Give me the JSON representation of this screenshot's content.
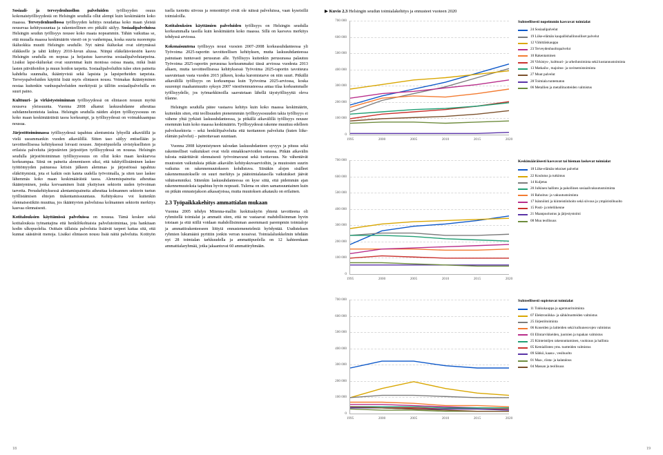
{
  "left_page": {
    "col1_p1_bold": "Sosiaali- ja terveydenhuollon palveluiden",
    "col1_p1_rest": " työllisyyden osuus kokonaistyöllisyydestä on Helsingin seudulla ollut alempi kuin keskimäärin koko maassa. ",
    "col1_p1_bold2": "Terveydenhuollossa",
    "col1_p1_rest2": " työllisyyden kehitys noudattaa koko maan yleistä nousevaa kehityssuuntaa ja rakenteellinen ero pitkälti säilyy. ",
    "col1_p1_bold3": "Sosiaalipalveluissa",
    "col1_p1_rest3": " Helsingin seudun työllisyys nousee koko maata nopeammin. Tähän vaikuttaa se, että muualla maassa keskimäärin väestö on jo vanhempaa, koska suuria nuorempia ikäluokkia muutti Helsingin seudulle. Nyt nämä ikäluokat ovat siirtymässä eläkkeelle ja tahti kiihtyy 2010-luvun alussa. Niinpä eläkeläisväestön kasvu Helsingin seudulla on nopeaa ja heijastuu kasvavina sosiaalipalvelutarpeina. Lisäksi lapsi-ikäluokat ovat suurenmat kuin monissa osissa maata, mikä lisää lasten päivähoidon ja muun hoidon tarpeita. Sosiaalipalveluihin tulee siten paineita kahdelta suunnalta, ikääntyvistä sekä lapsista ja lapsiperheiden tarpeista. Terveyspalveluiden käyttöä lisää myös elintason nousu. Voimakas ikääntyminen nostaa kuitenkin vanhuspalveluiden merkitystä ja tällöin sosiaalipalveluilla on suuri paino.",
    "col1_p2_bold": "Kulttuuri- ja virkistystoiminnan",
    "col1_p2_rest": " työllisyydessä on elintason nousun myötä nouseva yleissuunta. Vuonna 2008 alkanut laskusuhdanne aiheuttaa suhdanneluonteista laskua. Helsingin seudulla näiden alojen työllisyysosuus on koko maan keskimääräistä tasoa korkeampi, ja työllisyydessä on voimakkaampaa nousua.",
    "col1_p3_bold": "Järjestötoiminnassa",
    "col1_p3_rest": " työllisyydessä tapahtuu alentumista lyhyellä aikavälillä ja vielä useammankin vuoden aikavälillä. Sitten taso säilyy entisellään ja tavoitteellisessa kehityksessä loivasti nousee. Järjestöpuolella sivistyksellisten ja erilaisia palveluita järjestävien järjestöjen työllisyydessä on nousua. Helsingin seudulla järjestötoiminnan työllisyysosuus on ollut koko maan keskiarvoa korkeampaa. Siinä on paineita alenemiseen siksi, että tukityöllistäminen laskee työttömyyden painuessa kriisin jälkeen alemmas ja järjestöissä tapahtuu eläköitymistä, jota ei kaikin osin kateta uudella työvoimalla, ja siten taso laskee lähemmäs koko maan keskimääräistä tasoa. Alenemispaineita aiheuttaa ikääntyminen, jonka korvaaminen lisää yksityisen sektorin uuden työvoiman tarvetta. Peruskehityksessä alentamispaineita aiheuttaa kolmannen sektorin tuetun työllistämisen ehtojen tiukentamissuuntaus. Kehityskuva voi kuitenkin olennaisestikiin muuttua, jos ikääntyvien palveluissa kolmannen sektorin merkitys kasvaa olennaisesti.",
    "col1_p4_bold": "Kotitalouksien käyttämissä palveluissa",
    "col1_p4_rest": " on nousua. Tämä koskee sekä kotitalouksia työnantajina että henkilökohtaisia palvelutoimintaa, jota hankitaan kodin ulkopuolelta. Osittain tällaisia palveluita lisäävät tarpeet kattaa sitä, että kunnat säästävät menoja. Lisäksi elintason nousu lisää näitä palveluita. Kotityön tuella tuotettu siivous ja remonttityö eivät ole näissä palveluissa, vaan kyseisillä toimialoilla.",
    "col2_p1_bold": "Kotitalouksien käyttämien palveluiden",
    "col2_p1_rest": " työllisyys on Helsingin seudulla korkeammalla tasolla kuin keskimäärin koko maassa. Sillä on kasvava merkitys tehdyssä arviossa.",
    "col2_p2_bold": "Kokonaisuutena",
    "col2_p2_rest": " työllisyys nousi vuosien 2007–2008 korkeasuhdanteessa yli Työvoima 2025-raportin tavoitteellisen kehityksen, mutta laskusuhdanteessa painutaan tuntuvasti perusuran alle. Työllisyys kuitenkin perusurassa palautuu Työvoima 2025-raportin perusuraa korkeammaksi tässä arviossa vuodesta 2013 alkaen, mutta tavoitteellisessa kehityksessä Työvoima 2025-raportin tavoiteura saavutetaan vasta vuoden 2015 jälkeen, koska kuromistarve on niin suuri. Pitkällä aikavälillä työllisyys on korkeampaa kuin Työvoima 2025-arviossa, koska suurempi maahanmuutto syksyn 2007 väestöennusteessa antaa tilaa korkeammalle työllisyydelle, jos työmarkkinoilla saavutetaan lähellä täystyöllisyyttä oleva tilanne.",
    "col2_p3": "Helsingin seudulla pätee vastaava kehitys kuin koko maassa keskimäärin, kuitenkin siten, että teollisuuden pienenmmän työllisyysosuuden takia työllisyys ei vähene yhtä jyrkästi laskusuhdanteessa, ja pitkällä aikavälillä työllisyys nousee enemmän kuin koko maassa keskimäärin. Työllisyydessä rakenne muuttuu edelleen palvelusektoria – sekä henkilöpalveluita että tuottannon palveluita (kuten liike-elämän palvelut) – painottavaan suuntaan.",
    "col2_p4": "Vuonna 2008 käynnistyneen taloudan laskusuhdanteen syvyys ja pituus sekä rakenteelliset vaikutukset ovat vielä ennakkoarvioiden varassa. Pitkän aikavälin tulosta määrittävät olennaisesti työvoimavarat sekä tuottavuus. Ne vähentävät muutosten vaikutuksia pitkän aikavälin kehityskuvaarvioihin, ja muutosten suurin vaikutus on rakennemuutokseen kohdistuva. Siinäkin alojen sisälleet rakennemuutokselle on suuri merkitys ja päätoimialatasolla vaikutukset jäävät vähäisemmiksi. Sittenkin laskusuhdanteessa on kyse siitä, että pidemmän ajan rakennemuutoksia tapahtuu hyvin nopeasti. Tulema on siten samansuuntainen kuin on pitkän ennustejakson aikasarjoissa, mutta muutoksen aikataulu on erilainen.",
    "col2_h3": "2.3 Työpaikkakehitys ammattialan mukaan",
    "col2_p5": "Vuonna 2005 tehdyn Mitenna-mallin luokituskyön yhtenä tavoitteena oli ryhmitellä toimialat ja ammatit siten, että ne vastaavat mahdollisimman hyvin toisiaan ja että niillä voidaan mahdollisimman aseemmasti parempmin toimialoje ja ammattirakenteeseen liittyiä ennustemenetelmiä hyödyntää. Uudisteksen ryhmien lukumäärä pyrittiin jonkin verran nousivat. Toimialaluokkelmin tehdään nyt 28 toimialan tarkkuudella ja ammattipuolella on 12 kahteenkaan ammattialaryhmää, jotka jakaantuvat 60 ammattiryhmään."
  },
  "page_left_num": "18",
  "page_right_num": "19",
  "chart_caption_prefix": "Kuvio 2.3",
  "chart_caption_rest": " Helsingin seudun toimialakehitys ja ennusteet vuoteen 2020",
  "chart1": {
    "legend_title": "Suhteellisesti nopeimmin kasvavat toimialat",
    "ymax": 700000,
    "ystep": 100000,
    "xyears": [
      1995,
      2000,
      2005,
      2010,
      2015,
      2020
    ],
    "series": [
      {
        "name": "24 Sosiaalipalvelut",
        "color": "#0b57c9",
        "data": [
          26,
          34,
          40,
          46,
          54,
          62
        ]
      },
      {
        "name": "19 Liike-elämän kaupallishallinnolliset palvelut",
        "color": "#7b7b7b",
        "data": [
          20,
          30,
          36,
          42,
          50,
          58
        ]
      },
      {
        "name": "12 Vähittäiskauppa",
        "color": "#d9a600",
        "data": [
          40,
          44,
          48,
          50,
          53,
          56
        ]
      },
      {
        "name": "23 Terveydenhuoltopalvelut",
        "color": "#b82c8a",
        "data": [
          32,
          36,
          38,
          41,
          44,
          48
        ]
      },
      {
        "name": "10 Rakentaminen",
        "color": "#f37a2f",
        "data": [
          24,
          32,
          34,
          33,
          36,
          40
        ]
      },
      {
        "name": "26 Virkistys-, kulttuuri- ja urheilutoiminta sekä kustannustoiminta",
        "color": "#c9302c",
        "data": [
          14,
          18,
          20,
          22,
          25,
          29
        ]
      },
      {
        "name": "13 Matkailu-, majoitus- ja ravitsemistoiminta",
        "color": "#1f9e73",
        "data": [
          18,
          20,
          22,
          23,
          25,
          28
        ]
      },
      {
        "name": "27 Muut palvelut",
        "color": "#7a4f2a",
        "data": [
          12,
          14,
          15,
          16,
          18,
          21
        ]
      },
      {
        "name": "28 Toimiala tuntematon",
        "color": "#5831a6",
        "data": [
          1,
          1,
          1,
          1,
          1,
          2
        ]
      },
      {
        "name": "06 Metallien ja metallituotteiden valmistus",
        "color": "#6d8b3c",
        "data": [
          10,
          11,
          11,
          10,
          11,
          12
        ]
      }
    ]
  },
  "chart2": {
    "legend_title": "Keskimääräisesti kasvavat tai hieman laskevat toimialat",
    "ymax": 700000,
    "ystep": 100000,
    "xyears": [
      1995,
      2000,
      2005,
      2010,
      2015,
      2020
    ],
    "series": [
      {
        "name": "18 Liike-elämän tekniset palvelut",
        "color": "#0b57c9",
        "data": [
          26,
          38,
          42,
          44,
          47,
          51
        ]
      },
      {
        "name": "22 Koulutus ja tutkimus",
        "color": "#d9a600",
        "data": [
          40,
          44,
          46,
          47,
          48,
          49
        ]
      },
      {
        "name": "14 Kuljetus",
        "color": "#7b7b7b",
        "data": [
          34,
          36,
          36,
          34,
          34,
          35
        ]
      },
      {
        "name": "20 Julkinen hallinto ja pakollinen sosiaalivakuutustoiminta",
        "color": "#1f9e73",
        "data": [
          34,
          34,
          33,
          31,
          30,
          29
        ]
      },
      {
        "name": "16 Rahoitus- ja vakuutustoiminta",
        "color": "#f37a2f",
        "data": [
          22,
          22,
          22,
          21,
          21,
          22
        ]
      },
      {
        "name": "17 Isännöinti ja kiinteistönhoito sekä siivous ja ympäristöhuolto",
        "color": "#b82c8a",
        "data": [
          18,
          22,
          23,
          24,
          25,
          26
        ]
      },
      {
        "name": "15 Posti- ja teleliikenne",
        "color": "#c9302c",
        "data": [
          14,
          16,
          15,
          14,
          14,
          14
        ]
      },
      {
        "name": "21 Maanpuolustus ja järjestystoimi",
        "color": "#5831a6",
        "data": [
          8,
          8,
          8,
          8,
          8,
          8
        ]
      },
      {
        "name": "08 Muu teollisuus",
        "color": "#6d8b3c",
        "data": [
          10,
          10,
          9,
          8,
          7,
          7
        ]
      }
    ]
  },
  "chart3": {
    "legend_title": "Suhteellisesti supistuvat toimialat",
    "ymax": 700000,
    "ystep": 100000,
    "xyears": [
      1995,
      2000,
      2005,
      2010,
      2015,
      2020
    ],
    "series": [
      {
        "name": "11 Tukkukauppa ja agentuuritoiminta",
        "color": "#0b57c9",
        "data": [
          40,
          46,
          46,
          42,
          40,
          40
        ]
      },
      {
        "name": "07 Elektroniikka- ja sähkötuotteiden valmistus",
        "color": "#d9a600",
        "data": [
          14,
          22,
          28,
          22,
          18,
          16
        ]
      },
      {
        "name": "25 Järjestötoiminta",
        "color": "#7b7b7b",
        "data": [
          14,
          16,
          16,
          15,
          14,
          14
        ]
      },
      {
        "name": "06 Koneiden ja laitteiden sekä kulkuneuvojen valmistus",
        "color": "#f37a2f",
        "data": [
          10,
          10,
          9,
          7,
          7,
          6
        ]
      },
      {
        "name": "03 Elintarvikkeiden, juomien ja tupakan valmistus",
        "color": "#b82c8a",
        "data": [
          8,
          8,
          7,
          6,
          5,
          5
        ]
      },
      {
        "name": "25 Kiinteistöjen rakennuttaminen, vuokraus ja hallinta",
        "color": "#1f9e73",
        "data": [
          6,
          6,
          6,
          5,
          5,
          5
        ]
      },
      {
        "name": "05 Kemiallisten yms. tuotteiden valmistus",
        "color": "#c9302c",
        "data": [
          5,
          5,
          5,
          4,
          4,
          4
        ]
      },
      {
        "name": "09 Sähkö, kaasu-, vesihuolto",
        "color": "#5831a6",
        "data": [
          5,
          5,
          4,
          4,
          4,
          3
        ]
      },
      {
        "name": "01 Maa-, riista- ja kalatalous",
        "color": "#6d8b3c",
        "data": [
          4,
          3,
          3,
          2,
          2,
          2
        ]
      },
      {
        "name": "04 Massan ja teollisuus",
        "color": "#7a4f2a",
        "data": [
          6,
          5,
          4,
          3,
          2,
          2
        ]
      }
    ]
  }
}
